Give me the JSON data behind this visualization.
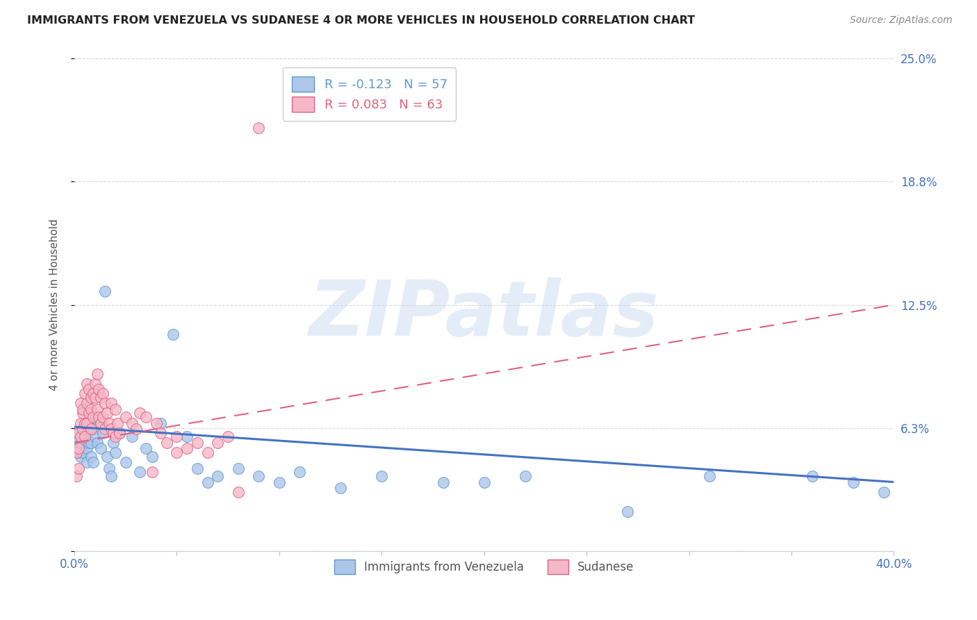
{
  "title": "IMMIGRANTS FROM VENEZUELA VS SUDANESE 4 OR MORE VEHICLES IN HOUSEHOLD CORRELATION CHART",
  "source": "Source: ZipAtlas.com",
  "ylabel": "4 or more Vehicles in Household",
  "xlim": [
    0.0,
    0.4
  ],
  "ylim": [
    0.0,
    0.25
  ],
  "xticks": [
    0.0,
    0.05,
    0.1,
    0.15,
    0.2,
    0.25,
    0.3,
    0.35,
    0.4
  ],
  "ytick_positions": [
    0.0,
    0.0625,
    0.125,
    0.1875,
    0.25
  ],
  "ytick_labels_right": [
    "",
    "6.3%",
    "12.5%",
    "18.8%",
    "25.0%"
  ],
  "grid_color": "#d8d8d8",
  "background_color": "#ffffff",
  "venezuela_color": "#aec6e8",
  "venezuela_edge_color": "#5b9bd5",
  "sudanese_color": "#f4b8c8",
  "sudanese_edge_color": "#e06080",
  "venezuela_R": -0.123,
  "venezuela_N": 57,
  "sudanese_R": 0.083,
  "sudanese_N": 63,
  "legend_label_1": "Immigrants from Venezuela",
  "legend_label_2": "Sudanese",
  "watermark": "ZIPatlas",
  "venezuela_x": [
    0.001,
    0.002,
    0.002,
    0.003,
    0.003,
    0.004,
    0.004,
    0.005,
    0.005,
    0.006,
    0.006,
    0.006,
    0.007,
    0.007,
    0.008,
    0.008,
    0.008,
    0.009,
    0.009,
    0.01,
    0.01,
    0.011,
    0.012,
    0.013,
    0.014,
    0.015,
    0.016,
    0.017,
    0.018,
    0.019,
    0.02,
    0.022,
    0.025,
    0.028,
    0.032,
    0.035,
    0.038,
    0.042,
    0.048,
    0.055,
    0.06,
    0.065,
    0.07,
    0.08,
    0.09,
    0.1,
    0.11,
    0.13,
    0.15,
    0.18,
    0.2,
    0.22,
    0.27,
    0.31,
    0.36,
    0.38,
    0.395
  ],
  "venezuela_y": [
    0.055,
    0.05,
    0.06,
    0.048,
    0.055,
    0.062,
    0.05,
    0.058,
    0.065,
    0.06,
    0.052,
    0.045,
    0.068,
    0.055,
    0.07,
    0.055,
    0.048,
    0.062,
    0.045,
    0.058,
    0.068,
    0.055,
    0.065,
    0.052,
    0.06,
    0.132,
    0.048,
    0.042,
    0.038,
    0.055,
    0.05,
    0.06,
    0.045,
    0.058,
    0.04,
    0.052,
    0.048,
    0.065,
    0.11,
    0.058,
    0.042,
    0.035,
    0.038,
    0.042,
    0.038,
    0.035,
    0.04,
    0.032,
    0.038,
    0.035,
    0.035,
    0.038,
    0.02,
    0.038,
    0.038,
    0.035,
    0.03
  ],
  "sudanese_x": [
    0.001,
    0.001,
    0.002,
    0.002,
    0.002,
    0.003,
    0.003,
    0.003,
    0.004,
    0.004,
    0.004,
    0.005,
    0.005,
    0.005,
    0.006,
    0.006,
    0.006,
    0.007,
    0.007,
    0.008,
    0.008,
    0.008,
    0.009,
    0.009,
    0.01,
    0.01,
    0.011,
    0.011,
    0.012,
    0.012,
    0.013,
    0.013,
    0.014,
    0.014,
    0.015,
    0.015,
    0.016,
    0.017,
    0.018,
    0.018,
    0.019,
    0.02,
    0.02,
    0.021,
    0.022,
    0.025,
    0.028,
    0.03,
    0.032,
    0.035,
    0.038,
    0.04,
    0.042,
    0.045,
    0.05,
    0.05,
    0.055,
    0.06,
    0.065,
    0.07,
    0.075,
    0.08,
    0.09
  ],
  "sudanese_y": [
    0.05,
    0.038,
    0.06,
    0.052,
    0.042,
    0.075,
    0.065,
    0.058,
    0.07,
    0.072,
    0.062,
    0.08,
    0.065,
    0.058,
    0.085,
    0.075,
    0.065,
    0.082,
    0.07,
    0.078,
    0.072,
    0.062,
    0.08,
    0.068,
    0.085,
    0.078,
    0.09,
    0.072,
    0.082,
    0.068,
    0.078,
    0.065,
    0.08,
    0.068,
    0.075,
    0.062,
    0.07,
    0.065,
    0.075,
    0.062,
    0.06,
    0.072,
    0.058,
    0.065,
    0.06,
    0.068,
    0.065,
    0.062,
    0.07,
    0.068,
    0.04,
    0.065,
    0.06,
    0.055,
    0.05,
    0.058,
    0.052,
    0.055,
    0.05,
    0.055,
    0.058,
    0.03,
    0.215
  ]
}
